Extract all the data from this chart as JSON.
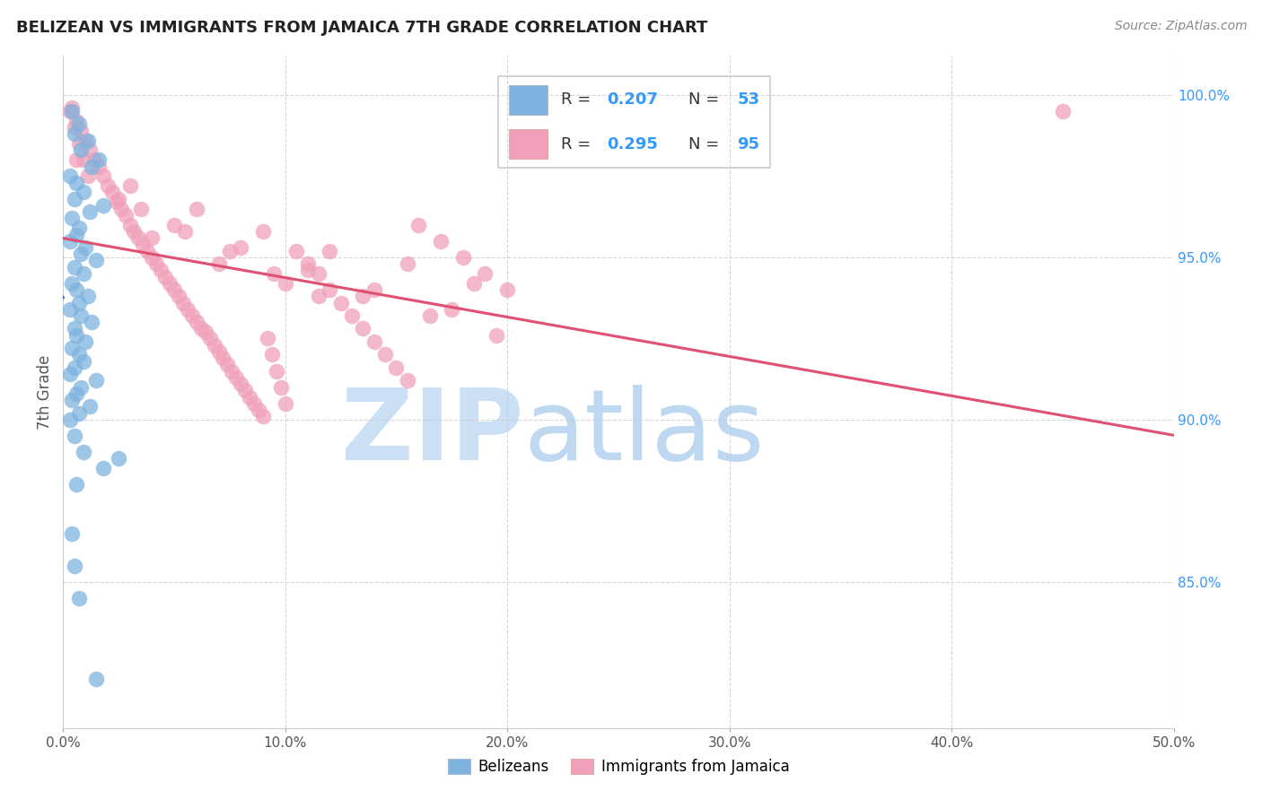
{
  "title": "BELIZEAN VS IMMIGRANTS FROM JAMAICA 7TH GRADE CORRELATION CHART",
  "source": "Source: ZipAtlas.com",
  "ylabel": "7th Grade",
  "xlim": [
    0.0,
    50.0
  ],
  "ylim": [
    80.5,
    101.2
  ],
  "yticks": [
    85.0,
    90.0,
    95.0,
    100.0
  ],
  "ytick_labels": [
    "85.0%",
    "90.0%",
    "95.0%",
    "100.0%"
  ],
  "xticks": [
    0.0,
    10.0,
    20.0,
    30.0,
    40.0,
    50.0
  ],
  "xtick_labels": [
    "0.0%",
    "10.0%",
    "20.0%",
    "30.0%",
    "40.0%",
    "50.0%"
  ],
  "legend_blue_label": "Belizeans",
  "legend_pink_label": "Immigrants from Jamaica",
  "R_blue": 0.207,
  "N_blue": 53,
  "R_pink": 0.295,
  "N_pink": 95,
  "blue_color": "#7eb3e0",
  "blue_edge_color": "#5a9fd4",
  "pink_color": "#f0a0b8",
  "pink_edge_color": "#e87090",
  "trend_blue_color": "#3366cc",
  "trend_pink_color": "#e05070",
  "watermark_zip_color": "#cce0f5",
  "watermark_atlas_color": "#b8d4f0",
  "title_color": "#222222",
  "source_color": "#888888",
  "tick_color_y": "#3399ff",
  "tick_color_x": "#555555",
  "ylabel_color": "#555555",
  "grid_color": "#cccccc",
  "legend_border_color": "#cccccc",
  "blue_x": [
    0.4,
    0.7,
    0.5,
    1.1,
    0.8,
    1.6,
    1.3,
    0.3,
    0.6,
    0.9,
    0.5,
    1.8,
    1.2,
    0.4,
    0.7,
    0.6,
    0.3,
    1.0,
    0.8,
    1.5,
    0.5,
    0.9,
    0.4,
    0.6,
    1.1,
    0.7,
    0.3,
    0.8,
    1.3,
    0.5,
    0.6,
    1.0,
    0.4,
    0.7,
    0.9,
    0.5,
    0.3,
    1.5,
    0.8,
    0.6,
    0.4,
    1.2,
    0.7,
    0.3,
    0.5,
    0.9,
    1.8,
    0.6,
    2.5,
    0.4,
    0.5,
    0.7,
    1.5
  ],
  "blue_y": [
    99.5,
    99.1,
    98.8,
    98.6,
    98.3,
    98.0,
    97.8,
    97.5,
    97.3,
    97.0,
    96.8,
    96.6,
    96.4,
    96.2,
    95.9,
    95.7,
    95.5,
    95.3,
    95.1,
    94.9,
    94.7,
    94.5,
    94.2,
    94.0,
    93.8,
    93.6,
    93.4,
    93.2,
    93.0,
    92.8,
    92.6,
    92.4,
    92.2,
    92.0,
    91.8,
    91.6,
    91.4,
    91.2,
    91.0,
    90.8,
    90.6,
    90.4,
    90.2,
    90.0,
    89.5,
    89.0,
    88.5,
    88.0,
    88.8,
    86.5,
    85.5,
    84.5,
    82.0
  ],
  "pink_x": [
    0.4,
    0.6,
    0.8,
    1.0,
    1.2,
    1.4,
    1.6,
    1.8,
    2.0,
    2.2,
    2.4,
    2.6,
    2.8,
    3.0,
    3.2,
    3.4,
    3.6,
    3.8,
    4.0,
    4.2,
    4.4,
    4.6,
    4.8,
    5.0,
    5.2,
    5.4,
    5.6,
    5.8,
    6.0,
    6.2,
    6.4,
    6.6,
    6.8,
    7.0,
    7.2,
    7.4,
    7.6,
    7.8,
    8.0,
    8.2,
    8.4,
    8.6,
    8.8,
    9.0,
    9.2,
    9.4,
    9.6,
    9.8,
    10.0,
    10.5,
    11.0,
    11.5,
    12.0,
    12.5,
    13.0,
    13.5,
    14.0,
    14.5,
    15.0,
    15.5,
    16.0,
    17.0,
    18.0,
    19.0,
    20.0,
    0.3,
    0.5,
    0.7,
    0.9,
    1.1,
    3.5,
    5.5,
    7.5,
    9.5,
    11.5,
    3.0,
    6.0,
    9.0,
    12.0,
    15.5,
    18.5,
    2.5,
    5.0,
    8.0,
    11.0,
    14.0,
    17.5,
    4.0,
    7.0,
    10.0,
    13.5,
    16.5,
    19.5,
    45.0,
    0.6
  ],
  "pink_y": [
    99.6,
    99.2,
    98.9,
    98.6,
    98.3,
    98.0,
    97.8,
    97.5,
    97.2,
    97.0,
    96.7,
    96.5,
    96.3,
    96.0,
    95.8,
    95.6,
    95.4,
    95.2,
    95.0,
    94.8,
    94.6,
    94.4,
    94.2,
    94.0,
    93.8,
    93.6,
    93.4,
    93.2,
    93.0,
    92.8,
    92.7,
    92.5,
    92.3,
    92.1,
    91.9,
    91.7,
    91.5,
    91.3,
    91.1,
    90.9,
    90.7,
    90.5,
    90.3,
    90.1,
    92.5,
    92.0,
    91.5,
    91.0,
    90.5,
    95.2,
    94.8,
    94.5,
    94.0,
    93.6,
    93.2,
    92.8,
    92.4,
    92.0,
    91.6,
    91.2,
    96.0,
    95.5,
    95.0,
    94.5,
    94.0,
    99.5,
    99.0,
    98.5,
    98.0,
    97.5,
    96.5,
    95.8,
    95.2,
    94.5,
    93.8,
    97.2,
    96.5,
    95.8,
    95.2,
    94.8,
    94.2,
    96.8,
    96.0,
    95.3,
    94.6,
    94.0,
    93.4,
    95.6,
    94.8,
    94.2,
    93.8,
    93.2,
    92.6,
    99.5,
    98.0
  ]
}
